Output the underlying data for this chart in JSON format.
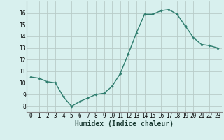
{
  "x": [
    0,
    1,
    2,
    3,
    4,
    5,
    6,
    7,
    8,
    9,
    10,
    11,
    12,
    13,
    14,
    15,
    16,
    17,
    18,
    19,
    20,
    21,
    22,
    23
  ],
  "y": [
    10.5,
    10.4,
    10.1,
    10.0,
    8.8,
    8.0,
    8.4,
    8.7,
    9.0,
    9.1,
    9.7,
    10.8,
    12.5,
    14.3,
    15.9,
    15.9,
    16.2,
    16.3,
    15.9,
    14.9,
    13.9,
    13.3,
    13.2,
    13.0
  ],
  "xlabel": "Humidex (Indice chaleur)",
  "ylim": [
    7.5,
    17.0
  ],
  "xlim": [
    -0.5,
    23.5
  ],
  "yticks": [
    8,
    9,
    10,
    11,
    12,
    13,
    14,
    15,
    16
  ],
  "xticks": [
    0,
    1,
    2,
    3,
    4,
    5,
    6,
    7,
    8,
    9,
    10,
    11,
    12,
    13,
    14,
    15,
    16,
    17,
    18,
    19,
    20,
    21,
    22,
    23
  ],
  "xticklabels": [
    "0",
    "1",
    "2",
    "3",
    "4",
    "5",
    "6",
    "7",
    "8",
    "9",
    "10",
    "11",
    "12",
    "13",
    "14",
    "15",
    "16",
    "17",
    "18",
    "19",
    "20",
    "21",
    "22",
    "23"
  ],
  "line_color": "#2e7d6e",
  "marker": "D",
  "marker_size": 1.8,
  "bg_color": "#d8f0ee",
  "grid_color": "#b8ccc8",
  "tick_fontsize": 5.5,
  "xlabel_fontsize": 7,
  "line_width": 1.0
}
